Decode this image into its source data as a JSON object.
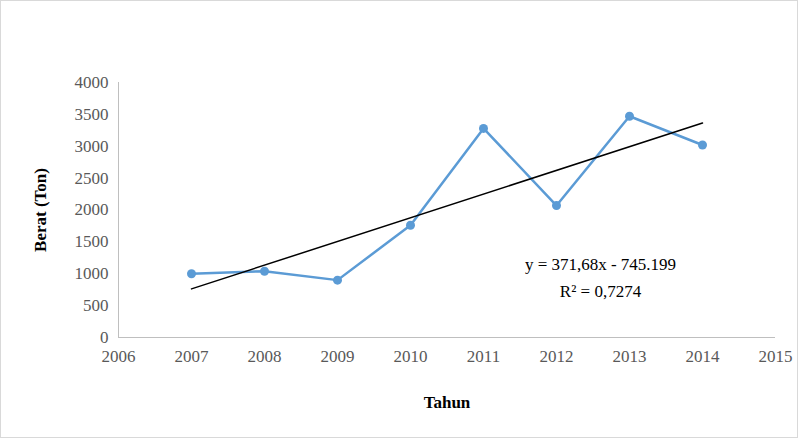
{
  "chart_data": {
    "type": "line",
    "x": [
      2007,
      2008,
      2009,
      2010,
      2011,
      2012,
      2013,
      2014
    ],
    "values": [
      1000,
      1040,
      900,
      1760,
      3280,
      2070,
      3470,
      3020
    ],
    "color": "#5b9bd5",
    "marker": "circle",
    "xlabel": "Tahun",
    "ylabel": "Berat (Ton)",
    "xlim": [
      2006,
      2015
    ],
    "xticks": [
      2006,
      2007,
      2008,
      2009,
      2010,
      2011,
      2012,
      2013,
      2014,
      2015
    ],
    "ylim": [
      0,
      4000
    ],
    "yticks": [
      0,
      500,
      1000,
      1500,
      2000,
      2500,
      3000,
      3500,
      4000
    ],
    "grid": false,
    "trendline": {
      "x": [
        2007,
        2014
      ],
      "values": [
        763,
        3365
      ],
      "color": "#000000"
    },
    "annotations": [
      "y = 371,68x - 745.199",
      "R² = 0,7274"
    ]
  }
}
